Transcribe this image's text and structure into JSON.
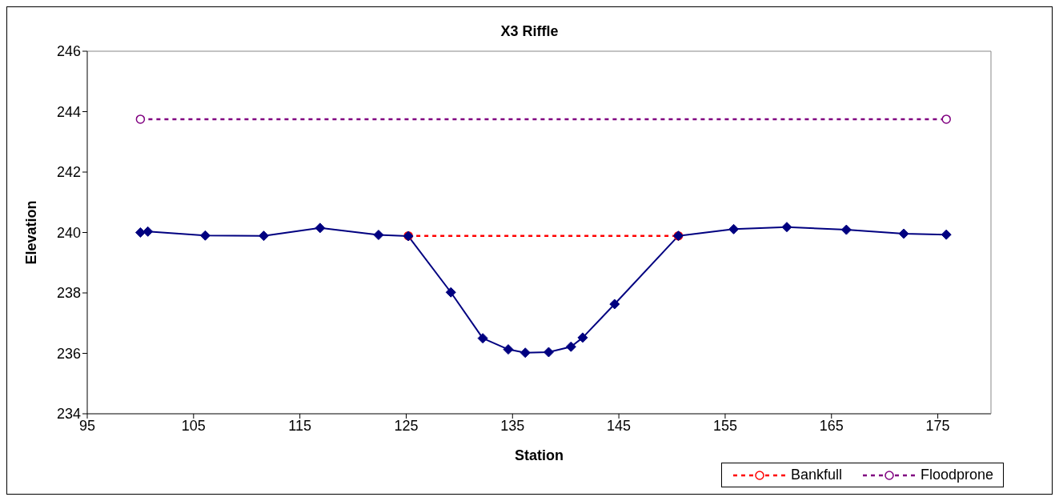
{
  "chart_data": {
    "type": "line",
    "title": "X3 Riffle",
    "xlabel": "Station",
    "ylabel": "Elevation",
    "xlim": [
      95,
      180
    ],
    "xticks": [
      95,
      105,
      115,
      125,
      135,
      145,
      155,
      165,
      175
    ],
    "ylim": [
      234,
      246
    ],
    "yticks": [
      234,
      236,
      238,
      240,
      242,
      244,
      246
    ],
    "legend": "bottom right",
    "series": [
      {
        "color": "#000080",
        "marker": "diamond",
        "line_style": "solid",
        "x": [
          100,
          100.7,
          106.1,
          111.6,
          116.9,
          122.4,
          125.2,
          129.2,
          132.2,
          134.6,
          136.2,
          138.4,
          140.5,
          141.6,
          144.6,
          150.6,
          155.8,
          160.8,
          166.4,
          171.8,
          175.8
        ],
        "values": [
          240.0,
          240.03,
          239.9,
          239.89,
          240.15,
          239.92,
          239.88,
          238.02,
          236.5,
          236.13,
          236.02,
          236.04,
          236.22,
          236.52,
          237.63,
          239.89,
          240.11,
          240.18,
          240.09,
          239.96,
          239.93
        ]
      },
      {
        "name": "Bankfull",
        "color": "#ff0000",
        "marker": "circle",
        "line_style": "dashed",
        "x": [
          125.2,
          150.6
        ],
        "values": [
          239.89,
          239.89
        ]
      },
      {
        "name": "Floodprone",
        "color": "#800080",
        "marker": "circle",
        "line_style": "dashed",
        "x": [
          100,
          175.8
        ],
        "values": [
          243.75,
          243.75
        ]
      }
    ]
  }
}
